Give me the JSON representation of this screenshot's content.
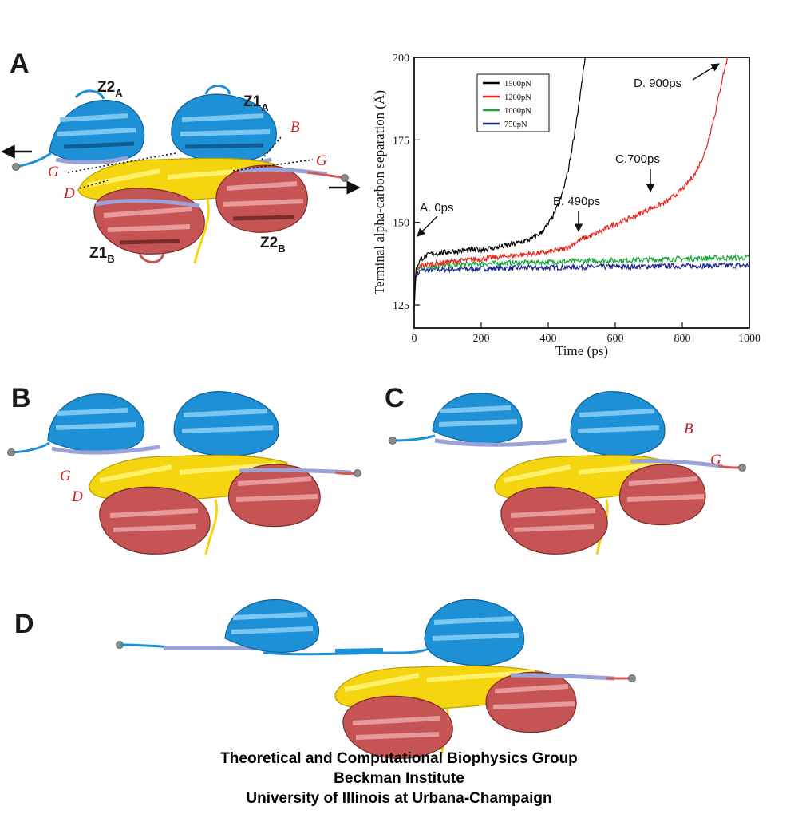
{
  "panels": {
    "a": "A",
    "b": "B",
    "c": "C",
    "d": "D"
  },
  "domains": {
    "z2a": {
      "main": "Z2",
      "sub": "A"
    },
    "z1a": {
      "main": "Z1",
      "sub": "A"
    },
    "z1b": {
      "main": "Z1",
      "sub": "B"
    },
    "z2b": {
      "main": "Z2",
      "sub": "B"
    }
  },
  "strands": {
    "b": "B",
    "g": "G",
    "d": "D"
  },
  "colors": {
    "blue_domain": "#1e90d6",
    "yellow_domain": "#f5d410",
    "red_domain": "#c75454",
    "lavender_strand": "#9aa3d8",
    "series_1500": "#000000",
    "series_1200": "#e8251f",
    "series_1000": "#1aa83a",
    "series_750": "#1f2890"
  },
  "chart_data": {
    "type": "line",
    "title": "",
    "xlabel": "Time (ps)",
    "ylabel": "Terminal alpha-carbon separation (Å)",
    "xlim": [
      0,
      1000
    ],
    "ylim": [
      118,
      200
    ],
    "xticks": [
      0,
      200,
      400,
      600,
      800,
      1000
    ],
    "yticks": [
      125,
      150,
      175,
      200
    ],
    "legend_position": "top-left",
    "series": [
      {
        "name": "1500pN",
        "key": "series_1500",
        "x": [
          0,
          5,
          20,
          50,
          100,
          150,
          200,
          250,
          300,
          350,
          380,
          400,
          420,
          440,
          460,
          480,
          500,
          510
        ],
        "y": [
          124,
          136,
          139,
          140.5,
          141,
          141.5,
          141.8,
          142.5,
          143.5,
          145,
          147,
          149.5,
          153,
          158,
          166,
          178,
          192,
          200
        ]
      },
      {
        "name": "1200pN",
        "key": "series_1200",
        "x": [
          0,
          5,
          20,
          100,
          200,
          300,
          400,
          450,
          490,
          540,
          600,
          650,
          700,
          750,
          800,
          840,
          870,
          900,
          920,
          935
        ],
        "y": [
          124,
          135,
          137,
          138,
          139,
          140,
          141,
          142,
          144.5,
          146.5,
          149.5,
          151.5,
          154,
          156,
          160,
          165,
          172,
          184,
          194,
          200
        ]
      },
      {
        "name": "1000pN",
        "key": "series_1000",
        "x": [
          0,
          5,
          20,
          100,
          200,
          300,
          400,
          500,
          600,
          700,
          800,
          900,
          1000
        ],
        "y": [
          124,
          135,
          136.5,
          137,
          137.5,
          137.8,
          138,
          138.3,
          138.5,
          138.7,
          139,
          139.2,
          139.3
        ]
      },
      {
        "name": "750pN",
        "key": "series_750",
        "x": [
          0,
          5,
          20,
          100,
          200,
          300,
          400,
          500,
          600,
          700,
          800,
          900,
          1000
        ],
        "y": [
          124,
          134,
          135.5,
          135.8,
          136,
          136.2,
          136.3,
          136.5,
          136.6,
          136.7,
          136.8,
          136.9,
          137
        ]
      }
    ],
    "annotations": [
      {
        "text": "A. 0ps",
        "x": 5,
        "y": 138.5
      },
      {
        "text": "B. 490ps",
        "x": 490,
        "y": 144
      },
      {
        "text": "C.700ps",
        "x": 700,
        "y": 155.5
      },
      {
        "text": "D. 900ps",
        "x": 920,
        "y": 198
      }
    ]
  },
  "credits": {
    "line1": "Theoretical and Computational Biophysics Group",
    "line2": "Beckman Institute",
    "line3": "University of Illinois at Urbana-Champaign"
  }
}
